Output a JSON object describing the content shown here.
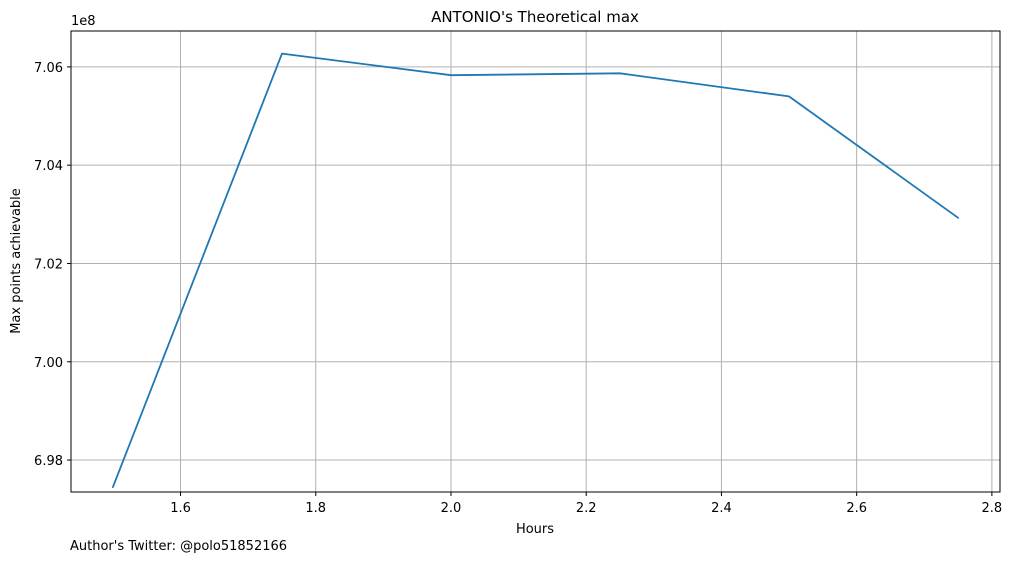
{
  "chart_data": {
    "type": "line",
    "title": "ANTONIO's Theoretical max",
    "xlabel": "Hours",
    "ylabel": "Max points achievable",
    "offset_label": "1e8",
    "footer": "Author's Twitter: @polo51852166",
    "xlim": [
      1.438,
      2.812
    ],
    "ylim": [
      6.9735,
      7.0673
    ],
    "x_ticks": [
      1.6,
      1.8,
      2.0,
      2.2,
      2.4,
      2.6,
      2.8
    ],
    "x_tick_labels": [
      "1.6",
      "1.8",
      "2.0",
      "2.2",
      "2.4",
      "2.6",
      "2.8"
    ],
    "y_ticks": [
      6.98,
      7.0,
      7.02,
      7.04,
      7.06
    ],
    "y_tick_labels": [
      "6.98",
      "7.00",
      "7.02",
      "7.04",
      "7.06"
    ],
    "grid": true,
    "series": [
      {
        "x": [
          1.5,
          1.75,
          2.0,
          2.25,
          2.5,
          2.75
        ],
        "y": [
          6.9745,
          7.0627,
          7.0583,
          7.0587,
          7.054,
          7.0293
        ],
        "color": "#1f77b4"
      }
    ]
  }
}
